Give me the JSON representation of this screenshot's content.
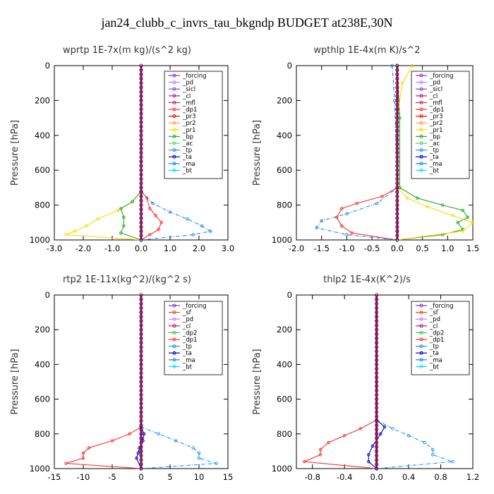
{
  "title": "jan24_clubb_c_invrs_tau_bkgndp  BUDGET at238E,30N",
  "colors": {
    "_forcing": "#8a2be2",
    "_pd": "#c080ff",
    "_sicl": "#6a5acd",
    "_cl": "#c71585",
    "_mfl": "#b03060",
    "_dp1": "#ff3030",
    "_pr3": "#ff0000",
    "_pr2": "#ffa040",
    "_pr1": "#ffd700",
    "_bp": "#22aa22",
    "_ac": "#66cc66",
    "_tp": "#1e90ff",
    "_ta": "#0000cd",
    "_ma": "#1c86ee",
    "_bt": "#00e5ee",
    "_sf": "#ff4500",
    "_dp2": "#33cc33"
  },
  "chart_data": [
    {
      "type": "line",
      "title": "wprtp  1E-7x(m kg)/(s^2 kg)",
      "ylabel": "Pressure [hPa]",
      "xlim": [
        -3,
        3
      ],
      "ylim": [
        1000,
        0
      ],
      "xticks": [
        "-3.0",
        "-2.0",
        "-1.0",
        "0.0",
        "1.0",
        "2.0",
        "3.0"
      ],
      "yticks": [
        "0",
        "200",
        "400",
        "600",
        "800",
        "1000"
      ],
      "legend": [
        "_forcing",
        "_pd",
        "_sicl",
        "_cl",
        "_mfl",
        "_dp1",
        "_pr3",
        "_pr2",
        "_pr1",
        "_bp",
        "_ac",
        "_tp",
        "_ta",
        "_ma",
        "_bt"
      ],
      "series": [
        {
          "name": "_pr1",
          "points": [
            [
              0,
              720
            ],
            [
              -0.3,
              780
            ],
            [
              -0.8,
              830
            ],
            [
              -1.5,
              880
            ],
            [
              -1.9,
              920
            ],
            [
              -2.3,
              950
            ],
            [
              -2.6,
              970
            ],
            [
              0,
              1000
            ]
          ]
        },
        {
          "name": "_bp",
          "points": [
            [
              0,
              720
            ],
            [
              -0.3,
              780
            ],
            [
              -0.7,
              820
            ],
            [
              -0.6,
              870
            ],
            [
              -0.6,
              920
            ],
            [
              -0.7,
              960
            ],
            [
              0,
              1000
            ]
          ]
        },
        {
          "name": "_dp1",
          "points": [
            [
              0,
              720
            ],
            [
              0.2,
              760
            ],
            [
              0.3,
              820
            ],
            [
              0.5,
              860
            ],
            [
              0.7,
              900
            ],
            [
              0.6,
              940
            ],
            [
              0.3,
              970
            ],
            [
              0,
              1000
            ]
          ]
        },
        {
          "name": "_ma",
          "points": [
            [
              0,
              720
            ],
            [
              0.4,
              790
            ],
            [
              1.0,
              840
            ],
            [
              1.6,
              880
            ],
            [
              2.1,
              920
            ],
            [
              2.4,
              950
            ],
            [
              1.8,
              970
            ],
            [
              0,
              1000
            ]
          ]
        },
        {
          "name": "_forcing",
          "points": [
            [
              0,
              0
            ],
            [
              0,
              1000
            ]
          ]
        }
      ]
    },
    {
      "type": "line",
      "title": "wpthlp  1E-4x(m K)/s^2",
      "ylabel": "Pressure [hPa]",
      "xlim": [
        -2,
        1.5
      ],
      "ylim": [
        1000,
        0
      ],
      "xticks": [
        "-2.0",
        "-1.5",
        "-1.0",
        "-0.5",
        "0.0",
        "0.5",
        "1.0",
        "1.5"
      ],
      "yticks": [
        "0",
        "200",
        "400",
        "600",
        "800",
        "1000"
      ],
      "legend": [
        "_forcing",
        "_pd",
        "_sicl",
        "_cl",
        "_mfl",
        "_dp1",
        "_pr3",
        "_pr2",
        "_pr1",
        "_bp",
        "_ac",
        "_tp",
        "_ta",
        "_ma",
        "_bt"
      ],
      "series": [
        {
          "name": "_bp",
          "points": [
            [
              0,
              0
            ],
            [
              0.05,
              300
            ],
            [
              0.05,
              700
            ],
            [
              0.4,
              760
            ],
            [
              0.9,
              800
            ],
            [
              1.3,
              830
            ],
            [
              1.4,
              870
            ],
            [
              1.2,
              900
            ],
            [
              1.3,
              940
            ],
            [
              0.9,
              970
            ],
            [
              0,
              1000
            ]
          ]
        },
        {
          "name": "_pr1",
          "points": [
            [
              0.3,
              0
            ],
            [
              0.1,
              100
            ],
            [
              0,
              300
            ],
            [
              0,
              700
            ],
            [
              0.2,
              760
            ],
            [
              0.6,
              810
            ],
            [
              1.1,
              860
            ],
            [
              1.5,
              900
            ],
            [
              1.3,
              950
            ],
            [
              0,
              1000
            ]
          ]
        },
        {
          "name": "_dp1",
          "points": [
            [
              0,
              700
            ],
            [
              -0.3,
              750
            ],
            [
              -0.8,
              790
            ],
            [
              -1.1,
              820
            ],
            [
              -1.2,
              870
            ],
            [
              -1.1,
              920
            ],
            [
              -0.9,
              960
            ],
            [
              0,
              1000
            ]
          ]
        },
        {
          "name": "_ma",
          "points": [
            [
              -0.1,
              0
            ],
            [
              -0.05,
              200
            ],
            [
              0,
              700
            ],
            [
              -0.4,
              790
            ],
            [
              -1.0,
              850
            ],
            [
              -1.5,
              890
            ],
            [
              -1.6,
              930
            ],
            [
              -1.0,
              970
            ],
            [
              0,
              1000
            ]
          ]
        },
        {
          "name": "_forcing",
          "points": [
            [
              0,
              0
            ],
            [
              0,
              1000
            ]
          ]
        }
      ]
    },
    {
      "type": "line",
      "title": "rtp2  1E-11x(kg^2)/(kg^2 s)",
      "ylabel": "Pressure [hPa]",
      "xlim": [
        -15,
        15
      ],
      "ylim": [
        1000,
        0
      ],
      "xticks": [
        "-15",
        "-10",
        "-5",
        "0",
        "5",
        "10",
        "15"
      ],
      "yticks": [
        "0",
        "200",
        "400",
        "600",
        "800",
        "1000"
      ],
      "legend": [
        "_forcing",
        "_sf",
        "_pd",
        "_cl",
        "_dp2",
        "_dp1",
        "_tp",
        "_ta",
        "_ma",
        "_bt"
      ],
      "series": [
        {
          "name": "_dp1",
          "points": [
            [
              0,
              760
            ],
            [
              -2,
              800
            ],
            [
              -5,
              840
            ],
            [
              -9,
              880
            ],
            [
              -10,
              910
            ],
            [
              -10,
              940
            ],
            [
              -13,
              970
            ],
            [
              0,
              1000
            ]
          ]
        },
        {
          "name": "_tp",
          "points": [
            [
              0,
              760
            ],
            [
              3,
              800
            ],
            [
              6,
              840
            ],
            [
              9,
              880
            ],
            [
              10,
              910
            ],
            [
              10,
              940
            ],
            [
              13,
              970
            ],
            [
              0,
              1000
            ]
          ]
        },
        {
          "name": "_ta",
          "points": [
            [
              0,
              760
            ],
            [
              0.5,
              800
            ],
            [
              0.3,
              840
            ],
            [
              -0.3,
              880
            ],
            [
              -0.5,
              910
            ],
            [
              -0.8,
              940
            ],
            [
              0,
              1000
            ]
          ]
        },
        {
          "name": "_forcing",
          "points": [
            [
              0,
              0
            ],
            [
              0,
              1000
            ]
          ]
        }
      ]
    },
    {
      "type": "line",
      "title": "thlp2  1E-4x(K^2)/s",
      "ylabel": "Pressure [hPa]",
      "xlim": [
        -1.0,
        1.2
      ],
      "ylim": [
        1000,
        0
      ],
      "xticks": [
        "-0.8",
        "-0.4",
        "0.0",
        "0.4",
        "0.8",
        "1.2"
      ],
      "yticks": [
        "0",
        "200",
        "400",
        "600",
        "800",
        "1000"
      ],
      "legend": [
        "_forcing",
        "_sf",
        "_pd",
        "_cl",
        "_dp2",
        "_dp1",
        "_tp",
        "_ta",
        "_ma",
        "_bt"
      ],
      "series": [
        {
          "name": "_dp1",
          "points": [
            [
              0,
              720
            ],
            [
              -0.2,
              770
            ],
            [
              -0.4,
              810
            ],
            [
              -0.6,
              850
            ],
            [
              -0.7,
              890
            ],
            [
              -0.7,
              920
            ],
            [
              -0.9,
              960
            ],
            [
              0,
              1000
            ]
          ]
        },
        {
          "name": "_tp",
          "points": [
            [
              0,
              720
            ],
            [
              0.2,
              770
            ],
            [
              0.4,
              810
            ],
            [
              0.6,
              850
            ],
            [
              0.7,
              890
            ],
            [
              0.7,
              920
            ],
            [
              0.95,
              960
            ],
            [
              0,
              1000
            ]
          ]
        },
        {
          "name": "_ta",
          "points": [
            [
              0,
              720
            ],
            [
              0.1,
              760
            ],
            [
              0.05,
              800
            ],
            [
              -0.05,
              870
            ],
            [
              -0.1,
              920
            ],
            [
              -0.1,
              960
            ],
            [
              0,
              1000
            ]
          ]
        },
        {
          "name": "_forcing",
          "points": [
            [
              0,
              0
            ],
            [
              0,
              1000
            ]
          ]
        }
      ]
    }
  ]
}
